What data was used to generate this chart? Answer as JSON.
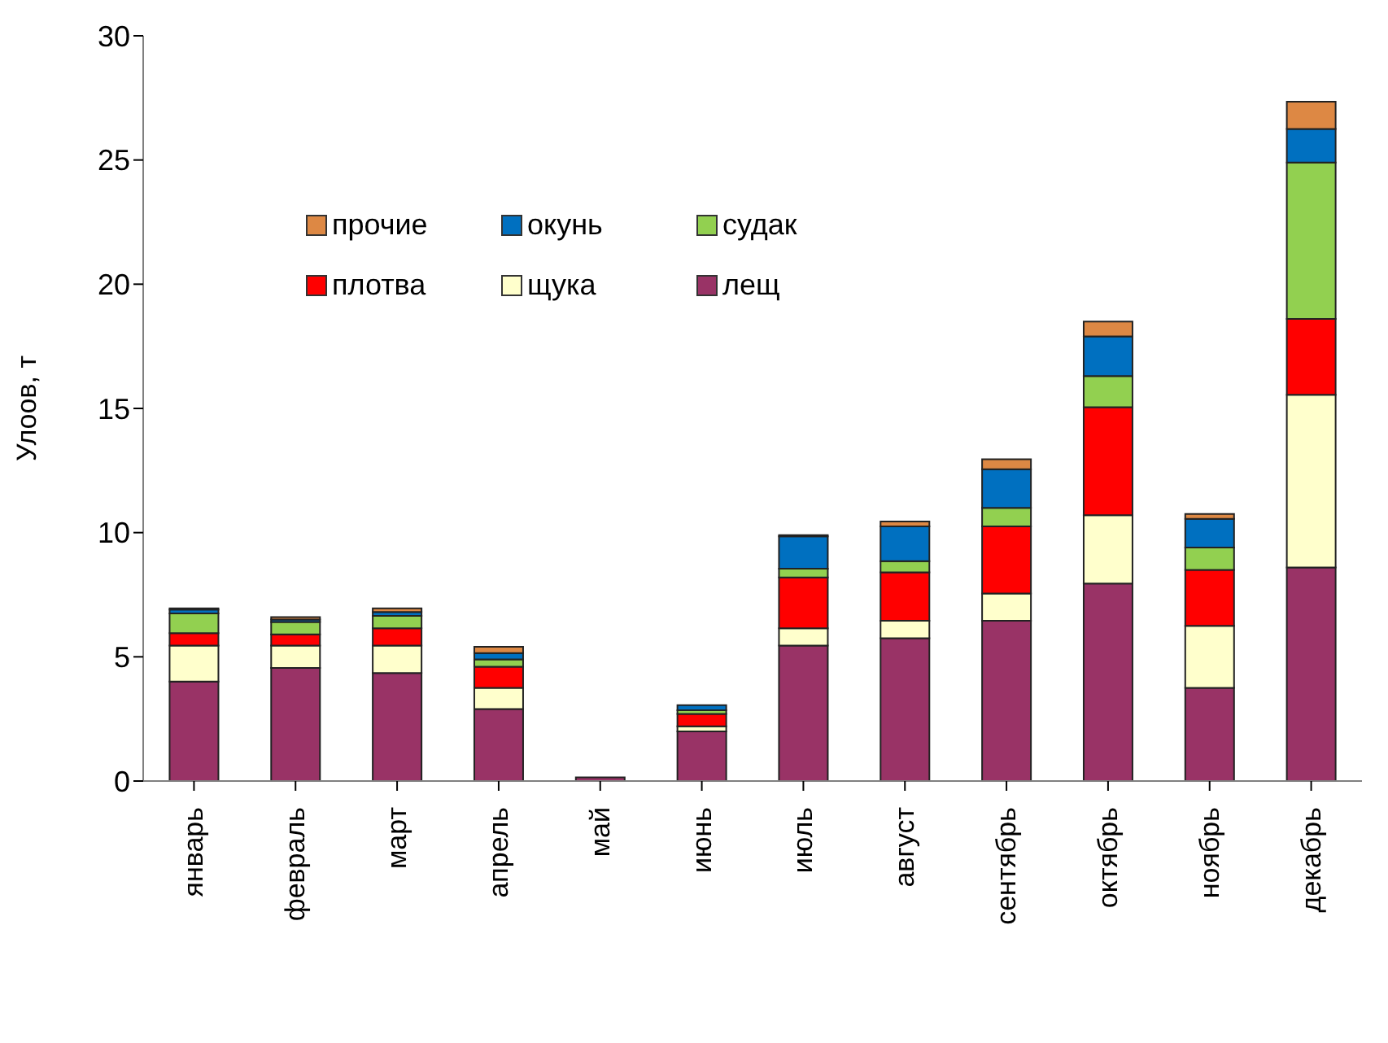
{
  "chart_data": {
    "type": "bar",
    "stacked": true,
    "ylabel": "Улоов, т",
    "categories": [
      "январь",
      "февраль",
      "март",
      "апрель",
      "май",
      "июнь",
      "июль",
      "август",
      "сентябрь",
      "октябрь",
      "ноябрь",
      "декабрь"
    ],
    "series": [
      {
        "name": "лещ",
        "color": "#993366",
        "values": [
          4.0,
          4.55,
          4.35,
          2.9,
          0.15,
          2.0,
          5.45,
          5.75,
          6.45,
          7.95,
          3.75,
          8.6
        ]
      },
      {
        "name": "щука",
        "color": "#ffffcc",
        "values": [
          1.45,
          0.9,
          1.1,
          0.85,
          0,
          0.2,
          0.7,
          0.7,
          1.1,
          2.75,
          2.5,
          6.95
        ]
      },
      {
        "name": "плотва",
        "color": "#ff0000",
        "values": [
          0.5,
          0.45,
          0.7,
          0.85,
          0,
          0.5,
          2.05,
          1.95,
          2.7,
          4.35,
          2.25,
          3.05
        ]
      },
      {
        "name": "судак",
        "color": "#92d050",
        "values": [
          0.8,
          0.5,
          0.5,
          0.3,
          0,
          0.15,
          0.35,
          0.45,
          0.75,
          1.25,
          0.9,
          6.3
        ]
      },
      {
        "name": "окунь",
        "color": "#0070c0",
        "values": [
          0.15,
          0.1,
          0.15,
          0.25,
          0,
          0.2,
          1.3,
          1.4,
          1.55,
          1.6,
          1.15,
          1.35
        ]
      },
      {
        "name": "прочие",
        "color": "#dd8844",
        "values": [
          0.05,
          0.1,
          0.15,
          0.25,
          0,
          null,
          0.05,
          0.2,
          0.4,
          0.6,
          0.2,
          1.1
        ]
      }
    ],
    "ylim": [
      0,
      30
    ],
    "yticks": [
      0,
      5,
      10,
      15,
      20,
      25,
      30
    ],
    "grid": false,
    "legend": "top left"
  }
}
